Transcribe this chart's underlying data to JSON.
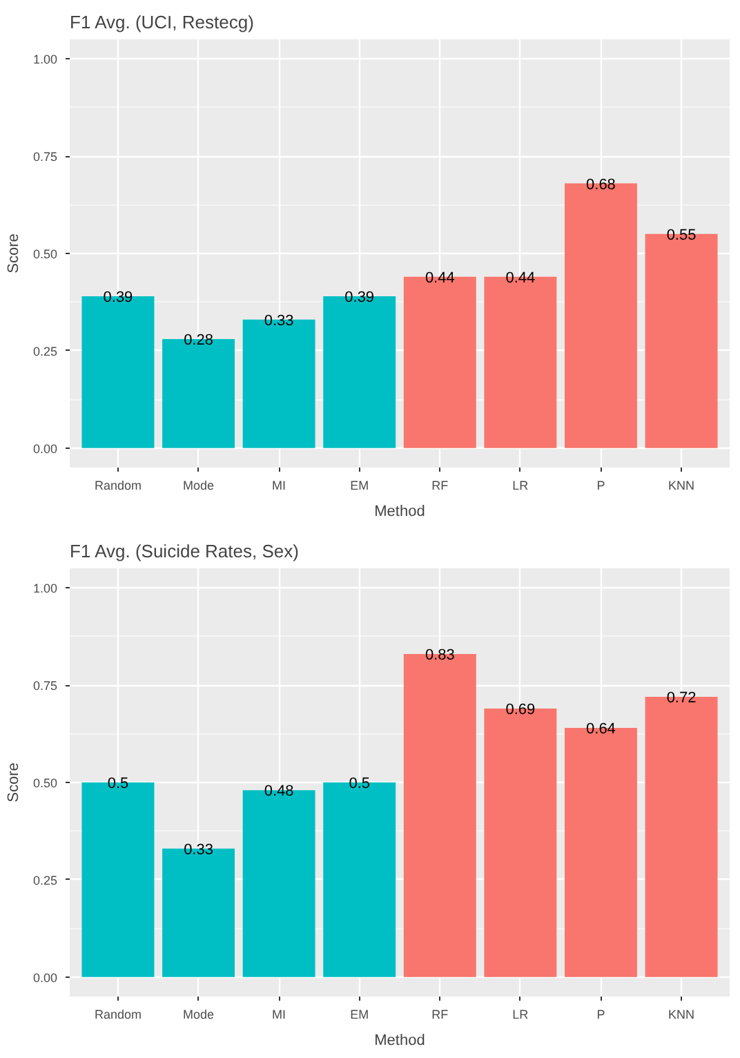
{
  "chart_data": [
    {
      "type": "bar",
      "title": "F1 Avg. (UCI, Restecg)",
      "xlabel": "Method",
      "ylabel": "Score",
      "categories": [
        "Random",
        "Mode",
        "MI",
        "EM",
        "RF",
        "LR",
        "P",
        "KNN"
      ],
      "values": [
        0.39,
        0.28,
        0.33,
        0.39,
        0.44,
        0.44,
        0.68,
        0.55
      ],
      "colors": [
        "#00bfc4",
        "#00bfc4",
        "#00bfc4",
        "#00bfc4",
        "#f8766d",
        "#f8766d",
        "#f8766d",
        "#f8766d"
      ],
      "ylim": [
        -0.05,
        1.05
      ],
      "yticks": [
        {
          "value": 0,
          "label": "0.00"
        },
        {
          "value": 0.25,
          "label": "0.25"
        },
        {
          "value": 0.5,
          "label": "0.50"
        },
        {
          "value": 0.75,
          "label": "0.75"
        },
        {
          "value": 1,
          "label": "1.00"
        }
      ],
      "grid": true,
      "data_labels": true
    },
    {
      "type": "bar",
      "title": "F1 Avg. (Suicide Rates, Sex)",
      "xlabel": "Method",
      "ylabel": "Score",
      "categories": [
        "Random",
        "Mode",
        "MI",
        "EM",
        "RF",
        "LR",
        "P",
        "KNN"
      ],
      "values": [
        0.5,
        0.33,
        0.48,
        0.5,
        0.83,
        0.69,
        0.64,
        0.72
      ],
      "colors": [
        "#00bfc4",
        "#00bfc4",
        "#00bfc4",
        "#00bfc4",
        "#f8766d",
        "#f8766d",
        "#f8766d",
        "#f8766d"
      ],
      "ylim": [
        -0.05,
        1.05
      ],
      "yticks": [
        {
          "value": 0,
          "label": "0.00"
        },
        {
          "value": 0.25,
          "label": "0.25"
        },
        {
          "value": 0.5,
          "label": "0.50"
        },
        {
          "value": 0.75,
          "label": "0.75"
        },
        {
          "value": 1,
          "label": "1.00"
        }
      ],
      "grid": true,
      "data_labels": true
    }
  ]
}
